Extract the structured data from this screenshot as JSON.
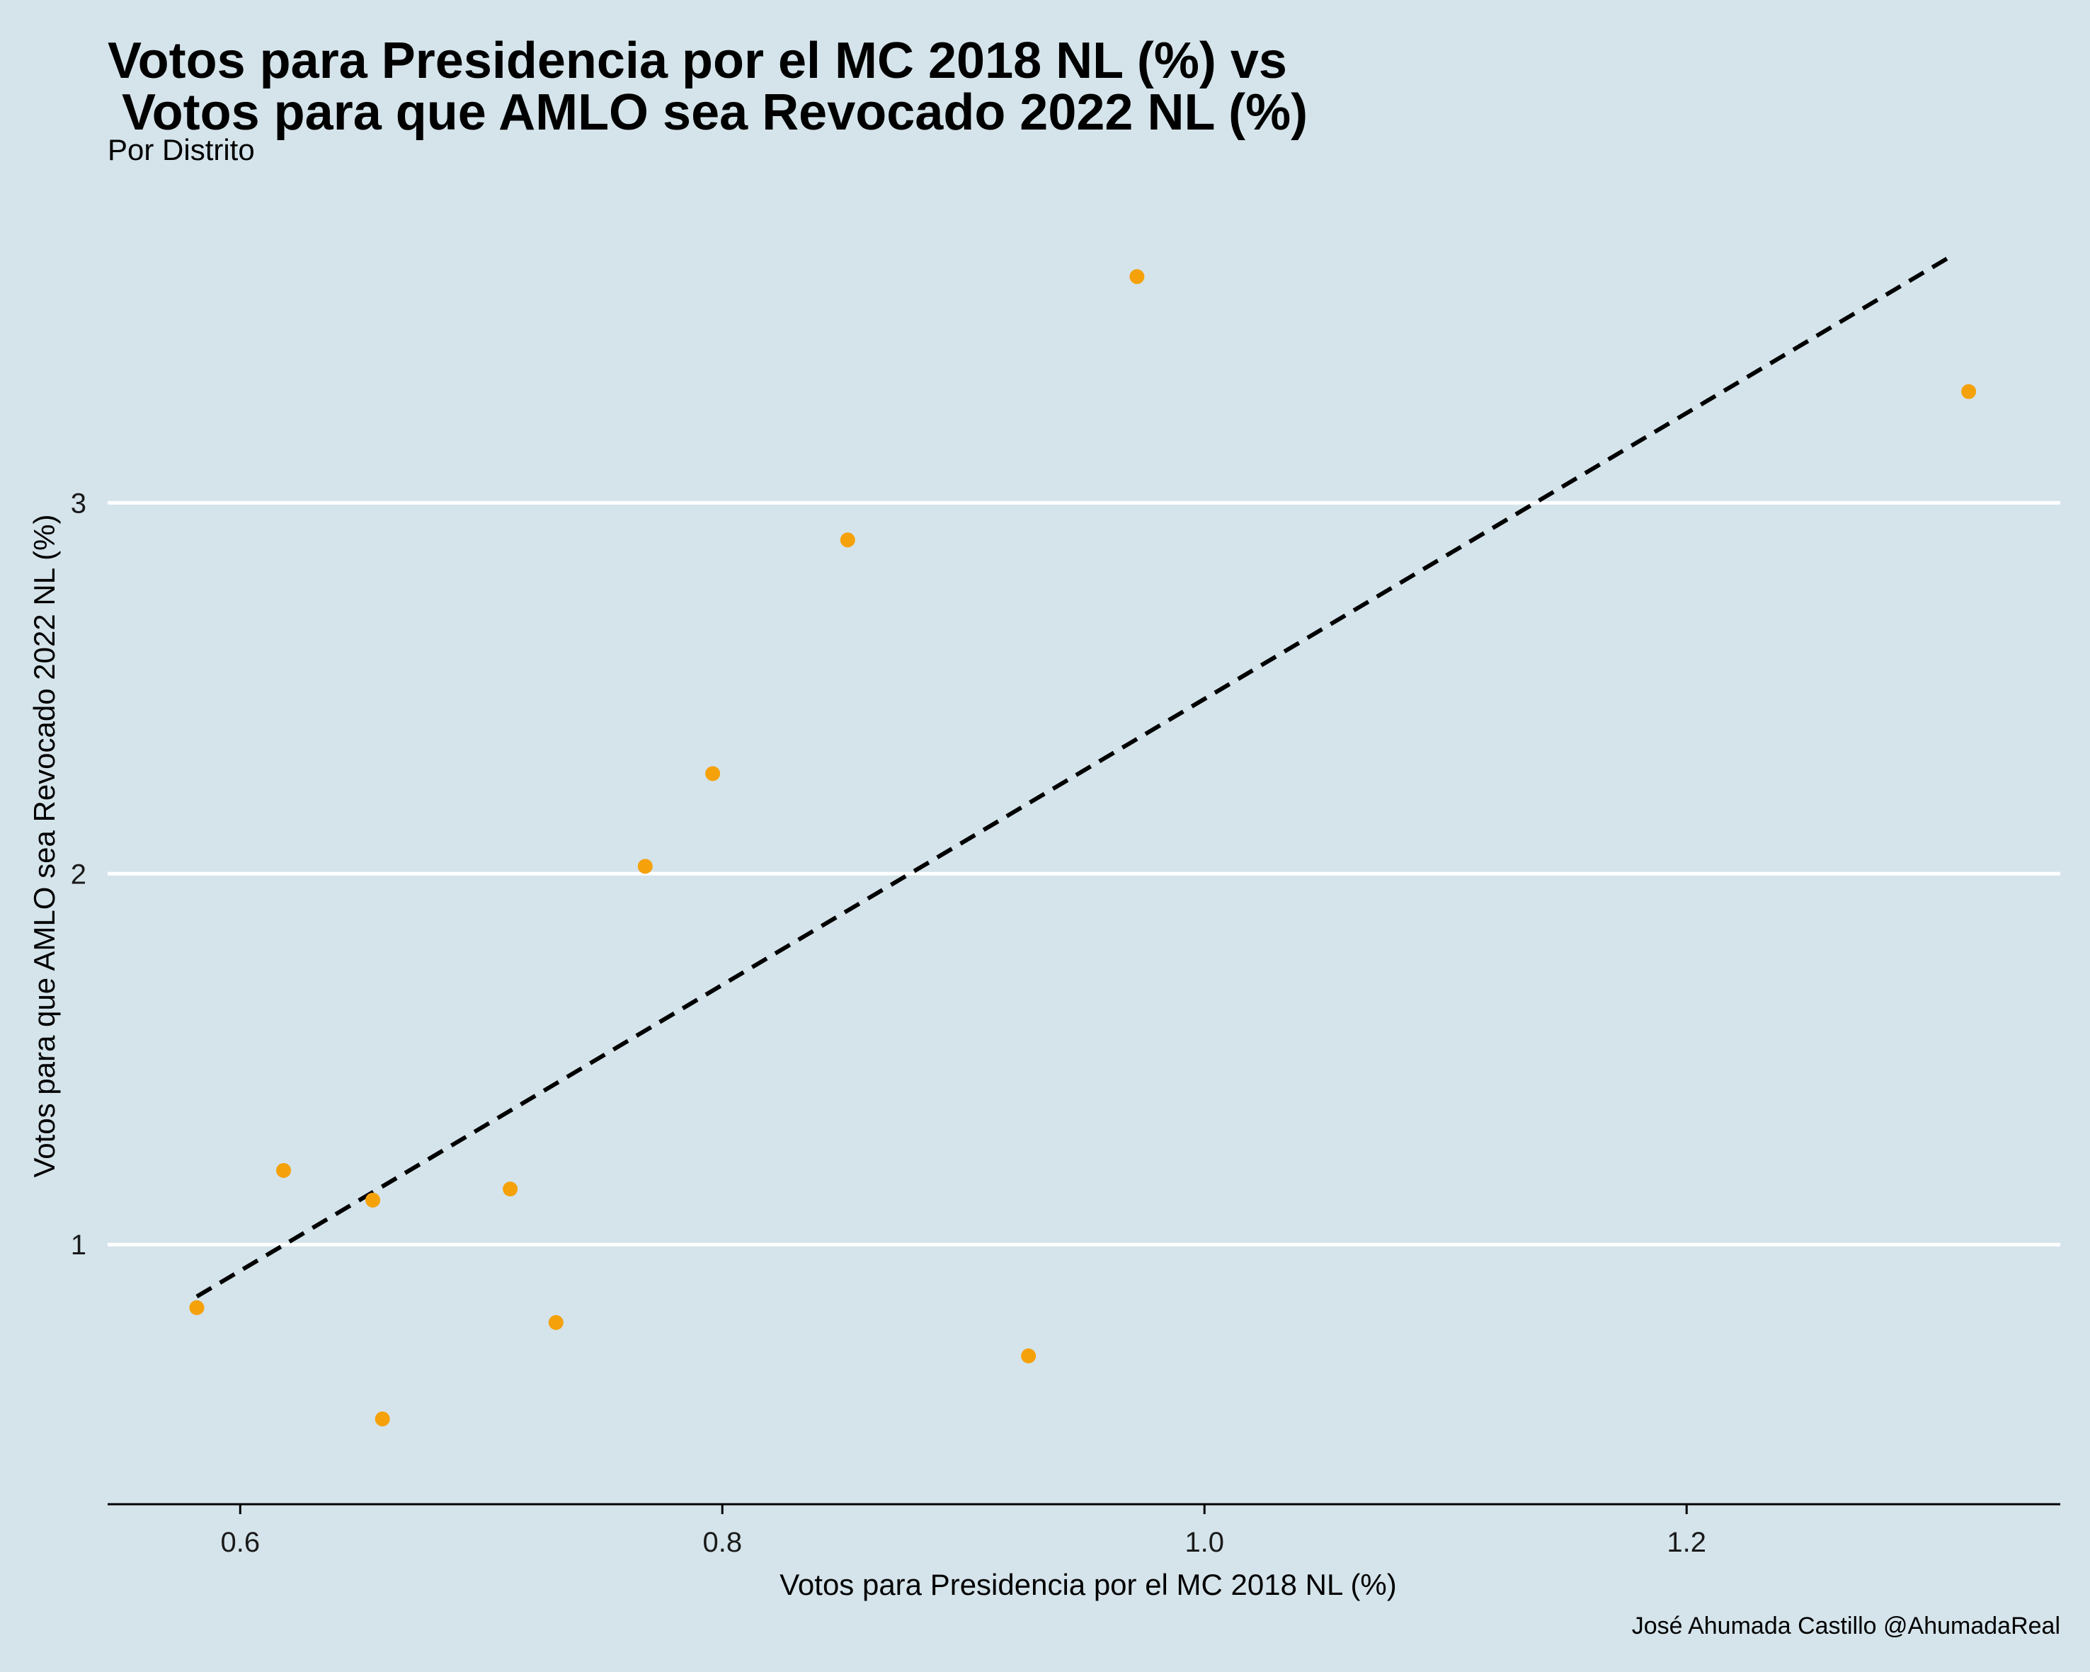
{
  "chart_data": {
    "type": "scatter",
    "title_lines": [
      "Votos para Presidencia por el MC 2018 NL (%) vs",
      " Votos para que AMLO sea Revocado 2022 NL (%)"
    ],
    "subtitle": "Por Distrito",
    "xlabel": "Votos para Presidencia por el MC 2018 NL (%)",
    "ylabel": "Votos para que AMLO sea Revocado 2022 NL (%)",
    "caption": "José Ahumada Castillo @AhumadaReal",
    "xlim": [
      0.545,
      1.355
    ],
    "ylim": [
      0.3,
      3.85
    ],
    "xticks": [
      0.6,
      0.8,
      1.0,
      1.2
    ],
    "xtick_labels": [
      "0.6",
      "0.8",
      "1.0",
      "1.2"
    ],
    "yticks": [
      1,
      2,
      3
    ],
    "ytick_labels": [
      "1",
      "2",
      "3"
    ],
    "grid": "horizontal major lines only",
    "point_color": "#f5a10a",
    "trend_color": "#000000",
    "background": "#d5e4eb",
    "points": [
      {
        "x": 0.582,
        "y": 0.83
      },
      {
        "x": 0.618,
        "y": 1.2
      },
      {
        "x": 0.655,
        "y": 1.12
      },
      {
        "x": 0.659,
        "y": 0.53
      },
      {
        "x": 0.712,
        "y": 1.15
      },
      {
        "x": 0.731,
        "y": 0.79
      },
      {
        "x": 0.768,
        "y": 2.02
      },
      {
        "x": 0.796,
        "y": 2.27
      },
      {
        "x": 0.852,
        "y": 2.9
      },
      {
        "x": 0.927,
        "y": 0.7
      },
      {
        "x": 0.972,
        "y": 3.61
      },
      {
        "x": 1.317,
        "y": 3.3
      }
    ],
    "trend_line": {
      "style": "dashed",
      "x": [
        0.582,
        1.311
      ],
      "y": [
        0.86,
        3.67
      ]
    }
  }
}
